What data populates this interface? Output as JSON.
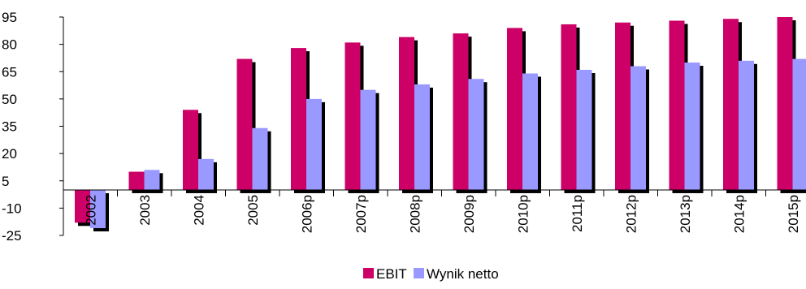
{
  "chart_data": {
    "type": "bar",
    "categories": [
      "2002",
      "2003",
      "2004",
      "2005",
      "2006p",
      "2007p",
      "2008p",
      "2009p",
      "2010p",
      "2011p",
      "2012p",
      "2013p",
      "2014p",
      "2015p"
    ],
    "series": [
      {
        "name": "EBIT",
        "color": "#cc0066",
        "values": [
          -18,
          10,
          44,
          72,
          78,
          81,
          84,
          86,
          89,
          91,
          92,
          93,
          94,
          95
        ]
      },
      {
        "name": "Wynik netto",
        "color": "#9999ff",
        "values": [
          -21,
          11,
          17,
          34,
          50,
          55,
          58,
          61,
          64,
          66,
          68,
          70,
          71,
          72
        ]
      }
    ],
    "yticks": [
      95,
      80,
      65,
      50,
      35,
      20,
      5,
      -10,
      -25
    ],
    "ylim": [
      -25,
      95
    ],
    "shadow_color": "#000000",
    "legend_position": "bottom-center",
    "title": "",
    "xlabel": "",
    "ylabel": ""
  }
}
